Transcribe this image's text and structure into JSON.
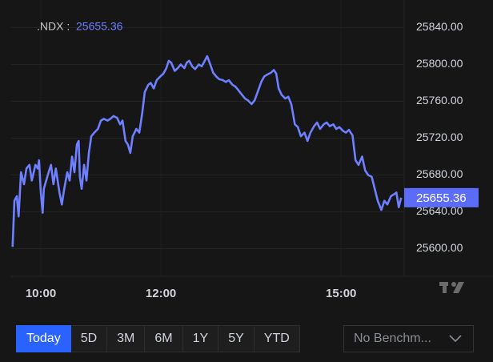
{
  "chart_data": {
    "type": "line",
    "symbol_label": ".NDX :",
    "x": [
      9.53,
      9.56,
      9.6,
      9.63,
      9.67,
      9.72,
      9.76,
      9.81,
      9.85,
      9.91,
      9.95,
      9.97,
      10.0,
      10.03,
      10.05,
      10.09,
      10.13,
      10.17,
      10.21,
      10.25,
      10.31,
      10.35,
      10.39,
      10.44,
      10.48,
      10.52,
      10.56,
      10.6,
      10.63,
      10.65,
      10.68,
      10.72,
      10.76,
      10.8,
      10.84,
      10.89,
      10.95,
      11.0,
      11.05,
      11.11,
      11.16,
      11.21,
      11.27,
      11.32,
      11.36,
      11.41,
      11.45,
      11.49,
      11.53,
      11.59,
      11.64,
      11.69,
      11.73,
      11.79,
      11.83,
      11.88,
      11.93,
      11.99,
      12.04,
      12.09,
      12.13,
      12.17,
      12.23,
      12.28,
      12.33,
      12.39,
      12.43,
      12.47,
      12.52,
      12.57,
      12.63,
      12.68,
      12.73,
      12.77,
      12.81,
      12.87,
      12.92,
      12.97,
      13.03,
      13.08,
      13.13,
      13.19,
      13.24,
      13.29,
      13.35,
      13.4,
      13.45,
      13.51,
      13.56,
      13.61,
      13.67,
      13.72,
      13.77,
      13.83,
      13.88,
      13.92,
      13.96,
      14.01,
      14.07,
      14.12,
      14.17,
      14.23,
      14.28,
      14.33,
      14.39,
      14.44,
      14.49,
      14.55,
      14.6,
      14.65,
      14.71,
      14.76,
      14.81,
      14.87,
      14.92,
      14.97,
      15.03,
      15.08,
      15.13,
      15.19,
      15.24,
      15.29,
      15.35,
      15.4,
      15.45,
      15.51,
      15.56,
      15.61,
      15.67,
      15.72,
      15.77,
      15.83,
      15.88,
      15.92,
      15.96,
      16.0
    ],
    "series": [
      {
        "color": "#6e7fff",
        "values": [
          25602,
          25652,
          25657,
          25635,
          25683,
          25670,
          25687,
          25691,
          25674,
          25691,
          25687,
          25696,
          25661,
          25639,
          25665,
          25674,
          25683,
          25691,
          25670,
          25687,
          25661,
          25648,
          25665,
          25683,
          25674,
          25700,
          25683,
          25713,
          25717,
          25678,
          25665,
          25691,
          25674,
          25704,
          25722,
          25726,
          25730,
          25739,
          25741,
          25739,
          25741,
          25744,
          25742,
          25735,
          25739,
          25717,
          25713,
          25704,
          25722,
          25730,
          25726,
          25748,
          25770,
          25778,
          25780,
          25774,
          25783,
          25787,
          25790,
          25796,
          25804,
          25802,
          25793,
          25796,
          25800,
          25796,
          25802,
          25804,
          25798,
          25795,
          25800,
          25798,
          25804,
          25809,
          25802,
          25791,
          25787,
          25784,
          25783,
          25781,
          25783,
          25778,
          25776,
          25772,
          25767,
          25763,
          25761,
          25757,
          25761,
          25770,
          25781,
          25787,
          25789,
          25791,
          25794,
          25790,
          25774,
          25767,
          25763,
          25765,
          25757,
          25735,
          25732,
          25722,
          25726,
          25717,
          25726,
          25733,
          25737,
          25730,
          25735,
          25737,
          25733,
          25735,
          25730,
          25732,
          25728,
          25726,
          25729,
          25723,
          25696,
          25691,
          25700,
          25685,
          25680,
          25678,
          25665,
          25652,
          25642,
          25652,
          25648,
          25657,
          25659,
          25661,
          25645,
          25655.36
        ]
      }
    ],
    "xlim": [
      9.5,
      16.05
    ],
    "ylim": [
      25570,
      25870
    ],
    "xticks": [
      {
        "value": 10,
        "label": "10:00"
      },
      {
        "value": 12,
        "label": "12:00"
      },
      {
        "value": 15,
        "label": "15:00"
      }
    ],
    "yticks": [
      {
        "value": 25600,
        "label": "25600.00"
      },
      {
        "value": 25640,
        "label": "25640.00"
      },
      {
        "value": 25680,
        "label": "25680.00"
      },
      {
        "value": 25720,
        "label": "25720.00"
      },
      {
        "value": 25760,
        "label": "25760.00"
      },
      {
        "value": 25800,
        "label": "25800.00"
      },
      {
        "value": 25840,
        "label": "25840.00"
      }
    ],
    "grid": true,
    "last_label_color": "#5b6cf9"
  },
  "controls": {
    "ranges": [
      "Today",
      "5D",
      "3M",
      "6M",
      "1Y",
      "5Y",
      "YTD"
    ],
    "active_range": "Today",
    "benchmark_placeholder": "No Benchm..."
  }
}
